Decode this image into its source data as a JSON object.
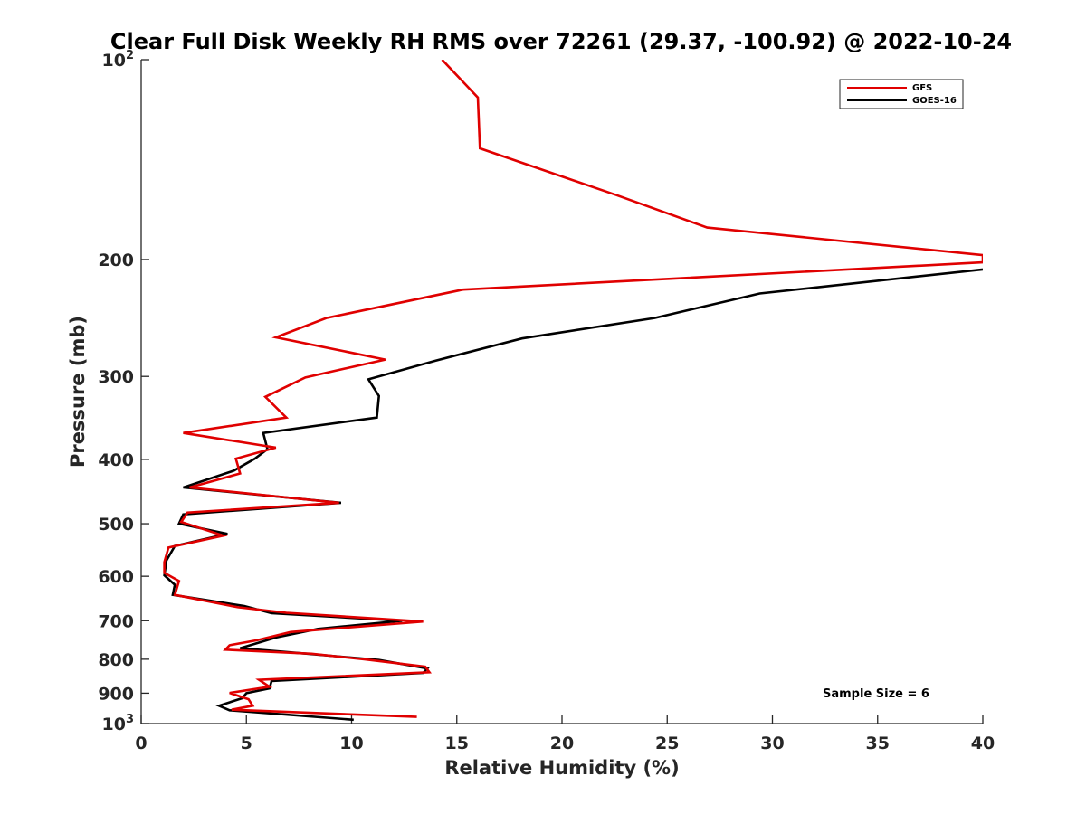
{
  "chart_data": {
    "type": "line",
    "title": "Clear Full Disk Weekly RH RMS over 72261 (29.37, -100.92) @ 2022-10-24",
    "xlabel": "Relative Humidity (%)",
    "ylabel": "Pressure (mb)",
    "xlim": [
      0,
      40
    ],
    "ylim": [
      100,
      1000
    ],
    "y_scale": "log",
    "y_reversed": true,
    "grid": false,
    "legend_position": "top-right",
    "x_ticks": [
      {
        "value": 0,
        "label": "0"
      },
      {
        "value": 5,
        "label": "5"
      },
      {
        "value": 10,
        "label": "10"
      },
      {
        "value": 15,
        "label": "15"
      },
      {
        "value": 20,
        "label": "20"
      },
      {
        "value": 25,
        "label": "25"
      },
      {
        "value": 30,
        "label": "30"
      },
      {
        "value": 35,
        "label": "35"
      },
      {
        "value": 40,
        "label": "40"
      }
    ],
    "y_ticks": [
      {
        "value": 100,
        "label": "10",
        "sup": "2"
      },
      {
        "value": 200,
        "label": "200",
        "sup": ""
      },
      {
        "value": 300,
        "label": "300",
        "sup": ""
      },
      {
        "value": 400,
        "label": "400",
        "sup": ""
      },
      {
        "value": 500,
        "label": "500",
        "sup": ""
      },
      {
        "value": 600,
        "label": "600",
        "sup": ""
      },
      {
        "value": 700,
        "label": "700",
        "sup": ""
      },
      {
        "value": 800,
        "label": "800",
        "sup": ""
      },
      {
        "value": 900,
        "label": "900",
        "sup": ""
      },
      {
        "value": 1000,
        "label": "10",
        "sup": "3"
      }
    ],
    "annotation": "Sample Size = 6",
    "series": [
      {
        "name": "GFS",
        "color": "#e00000",
        "points": [
          [
            14.3,
            100
          ],
          [
            16.0,
            114
          ],
          [
            16.1,
            136
          ],
          [
            22.6,
            160
          ],
          [
            26.9,
            179
          ],
          [
            40.0,
            197
          ],
          [
            40.0,
            202
          ],
          [
            15.3,
            222
          ],
          [
            8.8,
            245
          ],
          [
            6.4,
            262
          ],
          [
            11.6,
            283
          ],
          [
            7.8,
            301
          ],
          [
            5.9,
            322
          ],
          [
            6.9,
            346
          ],
          [
            2.0,
            365
          ],
          [
            6.4,
            384
          ],
          [
            4.5,
            399
          ],
          [
            4.7,
            420
          ],
          [
            2.3,
            441
          ],
          [
            9.4,
            465
          ],
          [
            2.2,
            481
          ],
          [
            1.9,
            497
          ],
          [
            3.9,
            521
          ],
          [
            1.3,
            543
          ],
          [
            1.1,
            571
          ],
          [
            1.1,
            593
          ],
          [
            1.8,
            610
          ],
          [
            1.6,
            640
          ],
          [
            4.6,
            668
          ],
          [
            6.9,
            681
          ],
          [
            13.4,
            702
          ],
          [
            7.1,
            728
          ],
          [
            5.5,
            749
          ],
          [
            4.2,
            762
          ],
          [
            4.0,
            774
          ],
          [
            8.1,
            785
          ],
          [
            10.6,
            800
          ],
          [
            13.5,
            821
          ],
          [
            13.7,
            837
          ],
          [
            5.6,
            859
          ],
          [
            6.1,
            880
          ],
          [
            4.2,
            899
          ],
          [
            5.1,
            919
          ],
          [
            5.3,
            940
          ],
          [
            4.3,
            953
          ],
          [
            13.1,
            977
          ]
        ]
      },
      {
        "name": "GOES-16",
        "color": "#000000",
        "points": [
          [
            40.0,
            207
          ],
          [
            29.4,
            225
          ],
          [
            24.4,
            245
          ],
          [
            18.1,
            263
          ],
          [
            14.0,
            284
          ],
          [
            10.8,
            303
          ],
          [
            11.3,
            321
          ],
          [
            11.2,
            346
          ],
          [
            5.8,
            365
          ],
          [
            6.0,
            386
          ],
          [
            5.4,
            399
          ],
          [
            4.4,
            416
          ],
          [
            2.0,
            441
          ],
          [
            9.5,
            465
          ],
          [
            2.0,
            484
          ],
          [
            1.8,
            500
          ],
          [
            4.1,
            518
          ],
          [
            1.6,
            540
          ],
          [
            1.2,
            568
          ],
          [
            1.1,
            598
          ],
          [
            1.6,
            618
          ],
          [
            1.5,
            640
          ],
          [
            4.9,
            665
          ],
          [
            6.2,
            682
          ],
          [
            12.4,
            700
          ],
          [
            8.4,
            720
          ],
          [
            6.4,
            742
          ],
          [
            4.7,
            770
          ],
          [
            7.9,
            785
          ],
          [
            11.3,
            802
          ],
          [
            13.6,
            826
          ],
          [
            13.4,
            839
          ],
          [
            6.2,
            863
          ],
          [
            6.1,
            885
          ],
          [
            5.0,
            900
          ],
          [
            4.8,
            916
          ],
          [
            3.7,
            940
          ],
          [
            4.2,
            955
          ],
          [
            10.1,
            987
          ]
        ]
      }
    ]
  }
}
